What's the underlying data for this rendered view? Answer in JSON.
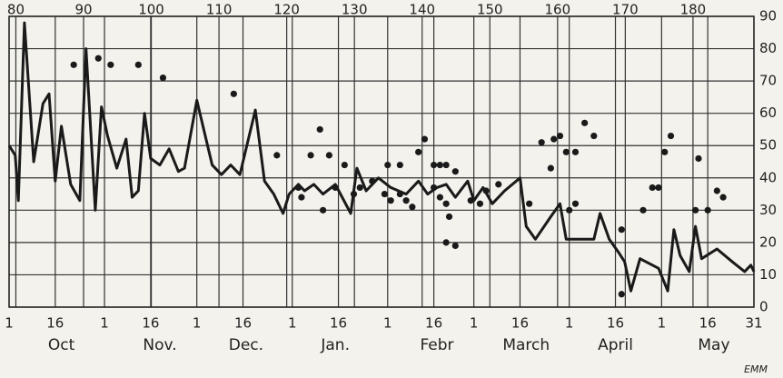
{
  "chart_data": {
    "type": "line",
    "xlim": [
      0,
      242
    ],
    "xticks": [
      {
        "value": 0,
        "label": "1"
      },
      {
        "value": 15,
        "label": "16"
      },
      {
        "value": 31,
        "label": "1"
      },
      {
        "value": 46,
        "label": "16"
      },
      {
        "value": 61,
        "label": "1"
      },
      {
        "value": 76,
        "label": "16"
      },
      {
        "value": 92,
        "label": "1"
      },
      {
        "value": 107,
        "label": "16"
      },
      {
        "value": 123,
        "label": "1"
      },
      {
        "value": 138,
        "label": "16"
      },
      {
        "value": 151,
        "label": "1"
      },
      {
        "value": 166,
        "label": "16"
      },
      {
        "value": 182,
        "label": "1"
      },
      {
        "value": 197,
        "label": "16"
      },
      {
        "value": 212,
        "label": "1"
      },
      {
        "value": 227,
        "label": "16"
      },
      {
        "value": 242,
        "label": "31"
      }
    ],
    "month_labels": [
      {
        "value": 17,
        "label": "Oct"
      },
      {
        "value": 49,
        "label": "Nov."
      },
      {
        "value": 77,
        "label": "Dec."
      },
      {
        "value": 106,
        "label": "Jan."
      },
      {
        "value": 139,
        "label": "Febr"
      },
      {
        "value": 168,
        "label": "March"
      },
      {
        "value": 197,
        "label": "April"
      },
      {
        "value": 229,
        "label": "May"
      }
    ],
    "x2lim": [
      79,
      189
    ],
    "x2ticks": [
      80,
      90,
      100,
      110,
      120,
      130,
      140,
      150,
      160,
      170,
      180
    ],
    "ylim": [
      0,
      90
    ],
    "yticks": [
      0,
      10,
      20,
      30,
      40,
      50,
      60,
      70,
      80,
      90
    ],
    "grid": true,
    "signature": "EMM",
    "series": [
      {
        "type": "line",
        "color": "#1a1a1a",
        "x": [
          0,
          2,
          3,
          5,
          8,
          11,
          13,
          15,
          17,
          20,
          23,
          25,
          28,
          30,
          32,
          35,
          38,
          40,
          42,
          44,
          46,
          49,
          52,
          55,
          57,
          61,
          66,
          69,
          72,
          75,
          80,
          83,
          86,
          89,
          91,
          94,
          96,
          99,
          102,
          106,
          111,
          113,
          116,
          120,
          124,
          129,
          133,
          136,
          139,
          142,
          145,
          149,
          151,
          154,
          157,
          161,
          166,
          168,
          171,
          176,
          179,
          181,
          186,
          190,
          192,
          195,
          198,
          200,
          202,
          205,
          211,
          214,
          216,
          218,
          221,
          223,
          225,
          230,
          235,
          239,
          241,
          242
        ],
        "values": [
          50,
          47,
          33,
          88,
          45,
          63,
          66,
          39,
          56,
          38,
          33,
          80,
          30,
          62,
          53,
          43,
          52,
          34,
          36,
          60,
          46,
          44,
          49,
          42,
          43,
          64,
          44,
          41,
          44,
          41,
          61,
          39,
          35,
          29,
          35,
          38,
          36,
          38,
          35,
          38,
          29,
          43,
          36,
          40,
          37,
          35,
          39,
          35,
          37,
          38,
          34,
          39,
          33,
          37,
          32,
          36,
          40,
          25,
          21,
          28,
          32,
          21,
          21,
          21,
          29,
          21,
          17,
          14,
          5,
          15,
          12,
          5,
          24,
          16,
          11,
          25,
          15,
          18,
          14,
          11,
          13,
          11
        ]
      },
      {
        "type": "scatter",
        "color": "#1a1a1a",
        "x": [
          21,
          29,
          33,
          42,
          50,
          73,
          87,
          98,
          101,
          104,
          109,
          94,
          95,
          102,
          106,
          112,
          114,
          118,
          123,
          127,
          135,
          133,
          138,
          140,
          142,
          145,
          122,
          124,
          127,
          129,
          131,
          138,
          140,
          142,
          143,
          142,
          145,
          150,
          153,
          155,
          159,
          169,
          173,
          176,
          177,
          179,
          181,
          184,
          182,
          184,
          187,
          190,
          199,
          199,
          206,
          209,
          211,
          213,
          215,
          223,
          224,
          227,
          230,
          232
        ],
        "values": [
          75,
          77,
          75,
          75,
          71,
          66,
          47,
          47,
          55,
          47,
          44,
          37,
          34,
          30,
          37,
          35,
          37,
          39,
          44,
          44,
          52,
          48,
          44,
          44,
          44,
          42,
          35,
          33,
          35,
          33,
          31,
          37,
          34,
          32,
          28,
          20,
          19,
          33,
          32,
          36,
          38,
          32,
          51,
          43,
          52,
          53,
          48,
          48,
          30,
          32,
          57,
          53,
          24,
          4,
          30,
          37,
          37,
          48,
          53,
          30,
          46,
          30,
          36,
          34
        ]
      }
    ]
  }
}
